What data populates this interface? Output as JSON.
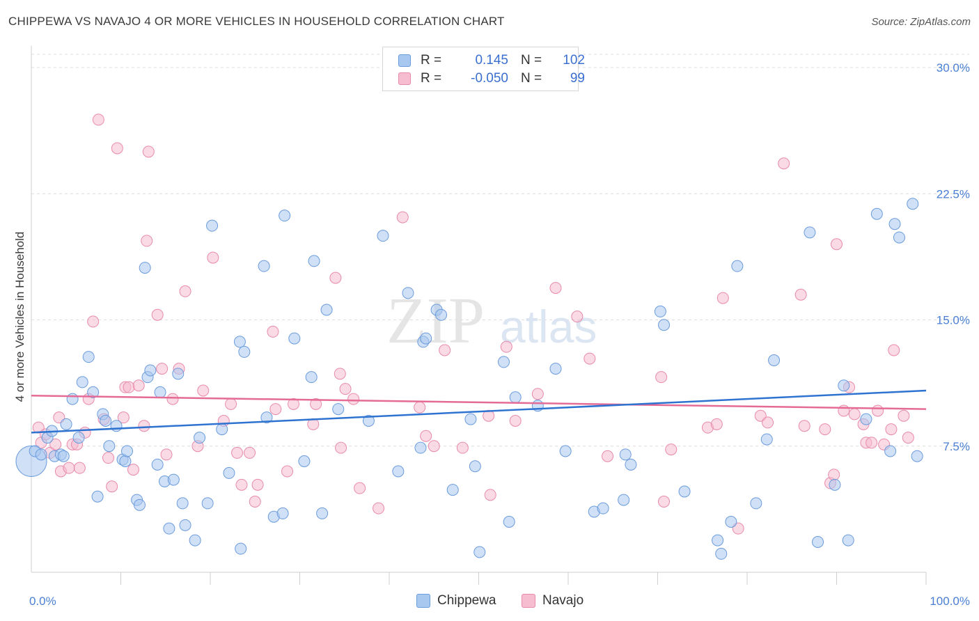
{
  "title": "CHIPPEWA VS NAVAJO 4 OR MORE VEHICLES IN HOUSEHOLD CORRELATION CHART",
  "source": "Source: ZipAtlas.com",
  "watermark": {
    "zip": "ZIP",
    "atlas": "atlas"
  },
  "legend": {
    "rows": [
      {
        "r_label": "R =",
        "r_value": "0.145",
        "n_label": "N =",
        "n_value": "102"
      },
      {
        "r_label": "R =",
        "r_value": "-0.050",
        "n_label": "N =",
        "n_value": "99"
      }
    ]
  },
  "bottom_legend": {
    "items": [
      "Chippewa",
      "Navajo"
    ]
  },
  "colors": {
    "chippewa_fill": "#a9c8f0",
    "chippewa_stroke": "#6a9bdc",
    "chippewa_line": "#2f73d0",
    "navajo_fill": "#f6bcd0",
    "navajo_stroke": "#e88aab",
    "navajo_line": "#e56b97",
    "tick_text": "#4a7fd4"
  },
  "chart_data": {
    "type": "scatter",
    "title": "CHIPPEWA VS NAVAJO 4 OR MORE VEHICLES IN HOUSEHOLD CORRELATION CHART",
    "xlabel": "",
    "ylabel": "4 or more Vehicles in Household",
    "xlim": [
      0,
      100
    ],
    "ylim": [
      0,
      30
    ],
    "x_tick_labels": [
      "0.0%",
      "100.0%"
    ],
    "y_ticks": [
      7.5,
      15.0,
      22.5,
      30.0
    ],
    "y_tick_labels": [
      "7.5%",
      "15.0%",
      "22.5%",
      "30.0%"
    ],
    "grid": "horizontal dashed",
    "legend_position": "top-center",
    "series": [
      {
        "name": "Chippewa",
        "r": 0.145,
        "n": 102,
        "trend": {
          "x": [
            0,
            100
          ],
          "y": [
            8.3,
            10.8
          ]
        },
        "points": [
          [
            0,
            6.6
          ],
          [
            0.4,
            7.2
          ],
          [
            1.1,
            7.0
          ],
          [
            1.8,
            8.0
          ],
          [
            2.3,
            8.4
          ],
          [
            2.6,
            6.9
          ],
          [
            3.3,
            7.0
          ],
          [
            3.6,
            6.9
          ],
          [
            3.9,
            8.8
          ],
          [
            4.6,
            10.3
          ],
          [
            5.3,
            8.0
          ],
          [
            5.7,
            11.3
          ],
          [
            6.4,
            12.8
          ],
          [
            6.9,
            10.7
          ],
          [
            7.4,
            4.5
          ],
          [
            8.0,
            9.4
          ],
          [
            8.3,
            9.0
          ],
          [
            8.7,
            7.5
          ],
          [
            9.5,
            8.7
          ],
          [
            10.2,
            6.7
          ],
          [
            10.5,
            6.6
          ],
          [
            10.7,
            7.2
          ],
          [
            11.8,
            4.3
          ],
          [
            12.1,
            4.0
          ],
          [
            12.7,
            18.1
          ],
          [
            13.0,
            11.6
          ],
          [
            13.3,
            12.0
          ],
          [
            14.1,
            6.4
          ],
          [
            14.4,
            10.7
          ],
          [
            14.9,
            5.4
          ],
          [
            15.4,
            2.6
          ],
          [
            15.9,
            5.5
          ],
          [
            16.4,
            11.8
          ],
          [
            16.9,
            4.1
          ],
          [
            17.2,
            2.8
          ],
          [
            18.3,
            1.9
          ],
          [
            18.8,
            8.0
          ],
          [
            19.7,
            4.1
          ],
          [
            20.2,
            20.6
          ],
          [
            21.3,
            8.5
          ],
          [
            22.1,
            5.9
          ],
          [
            23.3,
            13.7
          ],
          [
            23.4,
            1.4
          ],
          [
            23.8,
            13.1
          ],
          [
            26.0,
            18.2
          ],
          [
            26.3,
            9.2
          ],
          [
            27.1,
            3.3
          ],
          [
            28.1,
            3.5
          ],
          [
            28.3,
            21.2
          ],
          [
            29.4,
            13.9
          ],
          [
            30.5,
            6.6
          ],
          [
            31.3,
            11.6
          ],
          [
            31.6,
            18.5
          ],
          [
            32.5,
            3.5
          ],
          [
            33.0,
            15.6
          ],
          [
            34.3,
            9.7
          ],
          [
            37.7,
            9.0
          ],
          [
            39.3,
            20.0
          ],
          [
            41.0,
            6.0
          ],
          [
            42.1,
            16.6
          ],
          [
            43.5,
            7.4
          ],
          [
            43.8,
            13.7
          ],
          [
            44.1,
            13.9
          ],
          [
            45.3,
            15.6
          ],
          [
            45.8,
            15.3
          ],
          [
            47.1,
            4.9
          ],
          [
            49.1,
            9.1
          ],
          [
            49.6,
            6.3
          ],
          [
            50.1,
            1.2
          ],
          [
            52.8,
            12.5
          ],
          [
            53.4,
            3.0
          ],
          [
            54.1,
            10.4
          ],
          [
            56.6,
            9.9
          ],
          [
            58.6,
            12.1
          ],
          [
            59.7,
            7.2
          ],
          [
            62.9,
            3.6
          ],
          [
            63.9,
            3.8
          ],
          [
            66.2,
            4.3
          ],
          [
            66.4,
            7.0
          ],
          [
            67.0,
            6.4
          ],
          [
            70.3,
            15.5
          ],
          [
            70.7,
            14.7
          ],
          [
            73.0,
            4.8
          ],
          [
            76.7,
            1.9
          ],
          [
            77.1,
            1.1
          ],
          [
            78.2,
            3.0
          ],
          [
            78.9,
            18.2
          ],
          [
            81.0,
            4.1
          ],
          [
            82.2,
            7.9
          ],
          [
            83.0,
            12.6
          ],
          [
            87.0,
            20.2
          ],
          [
            87.9,
            1.8
          ],
          [
            89.8,
            5.2
          ],
          [
            90.8,
            11.1
          ],
          [
            91.3,
            1.9
          ],
          [
            93.3,
            9.1
          ],
          [
            94.5,
            21.3
          ],
          [
            96.0,
            7.2
          ],
          [
            96.5,
            20.7
          ],
          [
            97.0,
            19.9
          ],
          [
            98.5,
            21.9
          ],
          [
            99.0,
            6.9
          ]
        ]
      },
      {
        "name": "Navajo",
        "r": -0.05,
        "n": 99,
        "trend": {
          "x": [
            0,
            100
          ],
          "y": [
            10.5,
            9.7
          ]
        },
        "points": [
          [
            0.8,
            8.6
          ],
          [
            1.1,
            7.7
          ],
          [
            1.6,
            8.2
          ],
          [
            2.1,
            7.1
          ],
          [
            2.7,
            7.6
          ],
          [
            3.1,
            9.2
          ],
          [
            3.3,
            6.0
          ],
          [
            4.2,
            6.2
          ],
          [
            4.6,
            7.6
          ],
          [
            5.1,
            7.6
          ],
          [
            5.4,
            6.2
          ],
          [
            6.0,
            8.3
          ],
          [
            6.4,
            10.3
          ],
          [
            6.9,
            14.9
          ],
          [
            7.5,
            26.9
          ],
          [
            8.1,
            9.1
          ],
          [
            8.6,
            6.8
          ],
          [
            9.0,
            5.1
          ],
          [
            9.6,
            25.2
          ],
          [
            10.3,
            9.2
          ],
          [
            10.5,
            11.0
          ],
          [
            10.9,
            11.0
          ],
          [
            11.4,
            6.1
          ],
          [
            12.0,
            11.1
          ],
          [
            12.6,
            8.7
          ],
          [
            12.9,
            19.7
          ],
          [
            13.1,
            25.0
          ],
          [
            14.1,
            15.3
          ],
          [
            14.6,
            12.1
          ],
          [
            15.1,
            7.0
          ],
          [
            15.8,
            10.3
          ],
          [
            16.5,
            12.1
          ],
          [
            17.2,
            16.7
          ],
          [
            18.6,
            7.5
          ],
          [
            19.2,
            10.8
          ],
          [
            20.3,
            18.7
          ],
          [
            21.5,
            9.0
          ],
          [
            22.3,
            10.0
          ],
          [
            23.0,
            7.1
          ],
          [
            23.5,
            5.2
          ],
          [
            24.4,
            7.1
          ],
          [
            25.0,
            4.2
          ],
          [
            25.3,
            5.2
          ],
          [
            27.0,
            14.3
          ],
          [
            27.3,
            9.7
          ],
          [
            28.6,
            6.0
          ],
          [
            29.3,
            10.0
          ],
          [
            31.5,
            8.8
          ],
          [
            31.8,
            10.0
          ],
          [
            34.0,
            17.5
          ],
          [
            34.5,
            11.8
          ],
          [
            34.6,
            7.4
          ],
          [
            35.1,
            10.9
          ],
          [
            36.0,
            10.3
          ],
          [
            36.7,
            5.0
          ],
          [
            38.8,
            3.8
          ],
          [
            41.5,
            21.1
          ],
          [
            43.4,
            9.8
          ],
          [
            44.1,
            8.1
          ],
          [
            45.0,
            7.5
          ],
          [
            46.2,
            13.2
          ],
          [
            48.2,
            7.4
          ],
          [
            51.1,
            9.3
          ],
          [
            51.3,
            4.6
          ],
          [
            53.1,
            13.4
          ],
          [
            54.1,
            9.0
          ],
          [
            56.6,
            10.6
          ],
          [
            58.6,
            16.9
          ],
          [
            61.0,
            15.2
          ],
          [
            62.4,
            12.7
          ],
          [
            64.4,
            6.9
          ],
          [
            70.4,
            11.6
          ],
          [
            70.7,
            4.2
          ],
          [
            71.5,
            7.3
          ],
          [
            75.6,
            8.6
          ],
          [
            76.6,
            8.8
          ],
          [
            77.3,
            16.3
          ],
          [
            79.0,
            2.6
          ],
          [
            81.5,
            9.3
          ],
          [
            82.3,
            8.9
          ],
          [
            84.1,
            24.3
          ],
          [
            86.0,
            16.5
          ],
          [
            86.4,
            8.7
          ],
          [
            88.7,
            8.5
          ],
          [
            89.3,
            5.3
          ],
          [
            89.7,
            5.8
          ],
          [
            90.0,
            19.5
          ],
          [
            90.8,
            9.6
          ],
          [
            91.4,
            11.0
          ],
          [
            92.0,
            9.4
          ],
          [
            93.0,
            8.8
          ],
          [
            93.3,
            7.7
          ],
          [
            93.9,
            7.7
          ],
          [
            94.6,
            9.6
          ],
          [
            95.3,
            7.6
          ],
          [
            96.1,
            8.5
          ],
          [
            96.4,
            13.2
          ],
          [
            97.5,
            9.3
          ],
          [
            98.0,
            8.0
          ]
        ]
      }
    ]
  }
}
